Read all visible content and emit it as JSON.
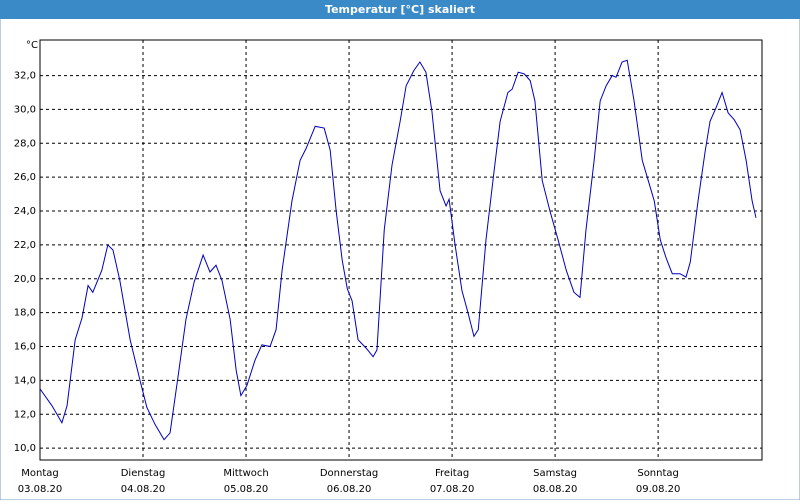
{
  "chart_data": {
    "type": "line",
    "title": "Temperatur [°C] skaliert",
    "y_unit": "°C",
    "x": [
      0,
      2.8,
      5.1,
      6.3,
      8.2,
      9.8,
      11.2,
      12.3,
      14.4,
      15.8,
      17.0,
      18.6,
      21.0,
      23.3,
      24.9,
      26.8,
      28.9,
      30.3,
      32.2,
      34.0,
      35.9,
      38.0,
      39.6,
      41.0,
      42.4,
      44.3,
      45.7,
      46.8,
      48.2,
      50.1,
      51.7,
      53.6,
      55.0,
      56.4,
      58.7,
      60.6,
      62.0,
      64.1,
      66.2,
      67.6,
      69.0,
      70.4,
      71.6,
      72.7,
      74.1,
      76.0,
      77.6,
      78.5,
      80.2,
      82.0,
      83.9,
      85.3,
      87.1,
      88.5,
      89.9,
      91.3,
      93.2,
      94.6,
      95.3,
      96.7,
      98.3,
      99.7,
      101.1,
      102.1,
      103.9,
      105.8,
      107.2,
      109.0,
      110.0,
      111.4,
      112.8,
      114.2,
      115.3,
      117.0,
      118.8,
      120.7,
      122.6,
      124.4,
      125.8,
      127.2,
      129.1,
      130.5,
      131.9,
      133.3,
      134.2,
      135.6,
      136.8,
      138.4,
      140.3,
      141.7,
      143.1,
      144.5,
      145.9,
      147.3,
      149.1,
      150.5,
      151.5,
      153.3,
      155.0,
      156.1,
      157.5,
      158.9,
      160.3,
      161.7,
      163.1,
      164.5,
      165.9,
      166.8
    ],
    "series": [
      {
        "name": "Temperatur",
        "color": "#0000c0",
        "values": [
          13.5,
          12.5,
          11.5,
          12.5,
          16.4,
          17.7,
          19.6,
          19.2,
          20.5,
          22.0,
          21.7,
          19.9,
          16.4,
          14.0,
          12.4,
          11.4,
          10.5,
          10.9,
          14.3,
          17.6,
          19.8,
          21.4,
          20.4,
          20.8,
          19.9,
          17.6,
          14.6,
          13.1,
          13.7,
          15.2,
          16.1,
          16.0,
          17.0,
          20.5,
          24.6,
          27.0,
          27.7,
          29.0,
          28.9,
          27.6,
          24.0,
          21.1,
          19.4,
          18.7,
          16.4,
          15.9,
          15.4,
          15.8,
          22.9,
          26.7,
          29.3,
          31.4,
          32.3,
          32.8,
          32.2,
          29.9,
          25.2,
          24.3,
          24.7,
          22.0,
          19.3,
          18.0,
          16.6,
          17.0,
          22.3,
          26.4,
          29.3,
          31.0,
          31.2,
          32.2,
          32.1,
          31.7,
          30.5,
          25.8,
          24.0,
          22.3,
          20.5,
          19.2,
          18.9,
          22.9,
          27.0,
          30.5,
          31.4,
          32.0,
          31.9,
          32.8,
          32.9,
          30.5,
          27.0,
          25.8,
          24.6,
          22.3,
          21.2,
          20.3,
          20.3,
          20.1,
          21.0,
          24.6,
          27.6,
          29.3,
          30.1,
          31.0,
          29.8,
          29.4,
          28.8,
          27.0,
          24.6,
          23.6
        ]
      }
    ],
    "xlim": [
      0,
      168.2
    ],
    "xticks": [
      {
        "value": 0,
        "label": "03.08.20"
      },
      {
        "value": 24,
        "label": "04.08.20"
      },
      {
        "value": 48,
        "label": "05.08.20"
      },
      {
        "value": 72,
        "label": "06.08.20"
      },
      {
        "value": 96,
        "label": "07.08.20"
      },
      {
        "value": 120,
        "label": "08.08.20"
      },
      {
        "value": 144,
        "label": "09.08.20"
      }
    ],
    "xtick_days": [
      "Montag",
      "Dienstag",
      "Mittwoch",
      "Donnerstag",
      "Freitag",
      "Samstag",
      "Sonntag"
    ],
    "ylim": [
      9.3,
      34.1
    ],
    "yticks": [
      {
        "value": 10,
        "label": "10,0"
      },
      {
        "value": 12,
        "label": "12,0"
      },
      {
        "value": 14,
        "label": "14,0"
      },
      {
        "value": 16,
        "label": "16,0"
      },
      {
        "value": 18,
        "label": "18,0"
      },
      {
        "value": 20,
        "label": "20,0"
      },
      {
        "value": 22,
        "label": "22,0"
      },
      {
        "value": 24,
        "label": "24,0"
      },
      {
        "value": 26,
        "label": "26,0"
      },
      {
        "value": 28,
        "label": "28,0"
      },
      {
        "value": 30,
        "label": "30,0"
      },
      {
        "value": 32,
        "label": "32,0"
      }
    ],
    "grid": true
  }
}
